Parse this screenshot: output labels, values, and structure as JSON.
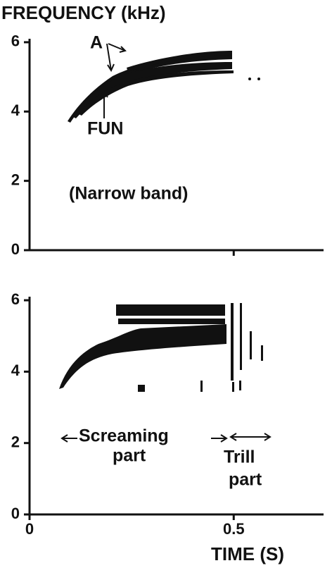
{
  "chart_data": [
    {
      "type": "spectrogram",
      "title": "FREQUENCY (kHz)",
      "annotations": [
        "A",
        "FUN",
        "(Narrow band)"
      ],
      "xlim": [
        0,
        0.72
      ],
      "xticks": [
        0.5
      ],
      "show_xtick_labels": false,
      "ylim": [
        0,
        6.1
      ],
      "yticks": [
        0,
        2,
        4,
        6
      ]
    },
    {
      "type": "spectrogram",
      "xlabel": "TIME (S)",
      "annotations": [
        "Screaming",
        "part",
        "Trill",
        "part"
      ],
      "xlim": [
        0,
        0.72
      ],
      "xticks": [
        0,
        0.5
      ],
      "show_xtick_labels": true,
      "ylim": [
        0,
        6.1
      ],
      "yticks": [
        0,
        2,
        4,
        6
      ]
    }
  ]
}
